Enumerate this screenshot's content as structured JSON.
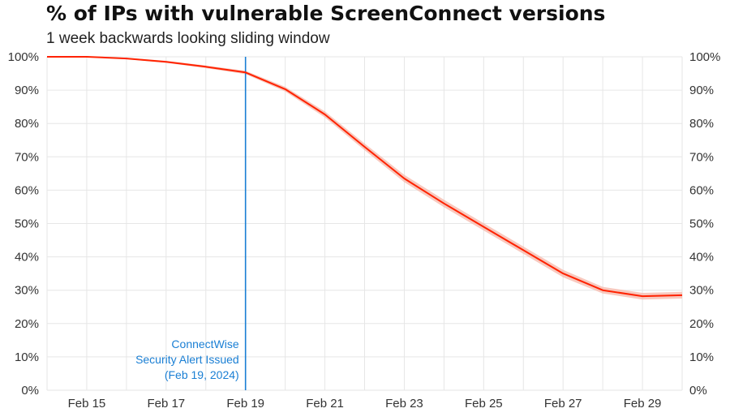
{
  "chart_data": {
    "type": "line",
    "title": "% of IPs with vulnerable ScreenConnect versions",
    "subtitle": "1 week backwards looking sliding window",
    "x_ticks": [
      "Feb 15",
      "Feb 17",
      "Feb 19",
      "Feb 21",
      "Feb 23",
      "Feb 25",
      "Feb 27",
      "Feb 29"
    ],
    "x_domain": [
      "2024-02-14",
      "2024-03-01"
    ],
    "ylim": [
      0,
      100
    ],
    "y_ticks": [
      "0%",
      "10%",
      "20%",
      "30%",
      "40%",
      "50%",
      "60%",
      "70%",
      "80%",
      "90%",
      "100%"
    ],
    "grid": true,
    "series": [
      {
        "color": "#ff2200",
        "band_color": "#f6b7aa",
        "x": [
          "2024-02-14",
          "2024-02-15",
          "2024-02-16",
          "2024-02-17",
          "2024-02-18",
          "2024-02-19",
          "2024-02-20",
          "2024-02-21",
          "2024-02-22",
          "2024-02-23",
          "2024-02-24",
          "2024-02-25",
          "2024-02-26",
          "2024-02-27",
          "2024-02-28",
          "2024-02-29",
          "2024-03-01"
        ],
        "y": [
          100,
          100,
          99.5,
          98.5,
          97,
          95.3,
          90.3,
          82.7,
          73,
          63.5,
          56,
          49,
          42,
          35,
          30,
          28.2,
          28.5
        ],
        "band_halfwidth": [
          0,
          0,
          0.2,
          0.3,
          0.4,
          0.5,
          0.7,
          0.9,
          1.0,
          1.1,
          1.1,
          1.1,
          1.1,
          1.1,
          1.0,
          1.0,
          1.0
        ]
      }
    ],
    "annotation": {
      "x": "2024-02-19",
      "color": "#1a7fd4",
      "lines": [
        "ConnectWise",
        "Security Alert Issued",
        "(Feb 19, 2024)"
      ]
    }
  }
}
